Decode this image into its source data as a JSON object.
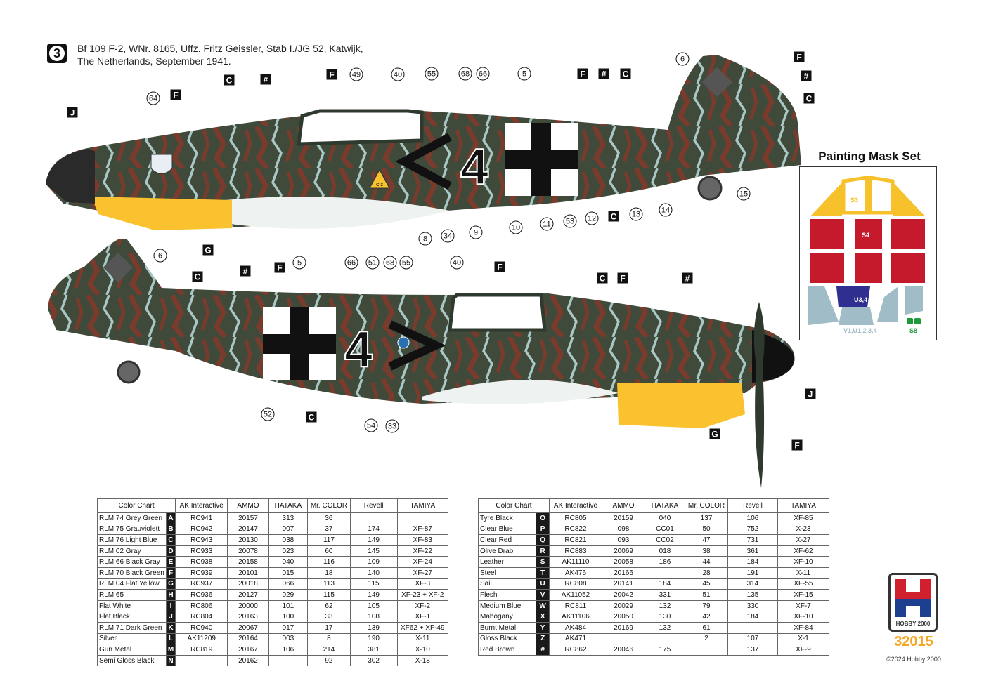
{
  "header": {
    "profile_number": "3",
    "title_line1": "Bf 109 F-2, WNr. 8165, Uffz. Fritz Geissler, Stab I./JG 52, Katwijk,",
    "title_line2": "The Netherlands, September 1941."
  },
  "aircraft_markings": {
    "side_code": "4",
    "tail_swastika_area": "covered",
    "small_label": "C-3"
  },
  "callouts_top": [
    "J",
    "64",
    "F",
    "C",
    "#",
    "F",
    "49",
    "40",
    "55",
    "68",
    "66",
    "5",
    "F",
    "#",
    "C",
    "6",
    "F",
    "#",
    "C",
    "15",
    "14",
    "13",
    "C",
    "12",
    "53",
    "11",
    "10",
    "9",
    "34",
    "8",
    "G"
  ],
  "callouts_bottom": [
    "6",
    "C",
    "#",
    "F",
    "5",
    "66",
    "51",
    "68",
    "55",
    "40",
    "F",
    "C",
    "F",
    "#",
    "J",
    "G",
    "F",
    "52",
    "C",
    "54",
    "33"
  ],
  "mask_set": {
    "title": "Painting Mask Set",
    "labels": [
      "S3",
      "S4",
      "U3,4",
      "V1,U1,2,3,4",
      "S8"
    ],
    "colors": {
      "S3": "#f7c12b",
      "S4": "#c41a2c",
      "U": "#2f2f8f",
      "V": "#9fbcc7",
      "S8": "#1f9a3a"
    }
  },
  "color_chart_headers": [
    "Color Chart",
    "",
    "AK Interactive",
    "AMMO",
    "HATAKA",
    "Mr. COLOR",
    "Revell",
    "TAMIYA"
  ],
  "color_chart_left": [
    [
      "RLM 74 Grey Green",
      "A",
      "RC941",
      "20157",
      "313",
      "36",
      "",
      ""
    ],
    [
      "RLM 75 Grauviolett",
      "B",
      "RC942",
      "20147",
      "007",
      "37",
      "174",
      "XF-87"
    ],
    [
      "RLM 76 Light Blue",
      "C",
      "RC943",
      "20130",
      "038",
      "117",
      "149",
      "XF-83"
    ],
    [
      "RLM 02 Gray",
      "D",
      "RC933",
      "20078",
      "023",
      "60",
      "145",
      "XF-22"
    ],
    [
      "RLM 66 Black Gray",
      "E",
      "RC938",
      "20158",
      "040",
      "116",
      "109",
      "XF-24"
    ],
    [
      "RLM 70 Black Green",
      "F",
      "RC939",
      "20101",
      "015",
      "18",
      "140",
      "XF-27"
    ],
    [
      "RLM 04 Flat Yellow",
      "G",
      "RC937",
      "20018",
      "066",
      "113",
      "115",
      "XF-3"
    ],
    [
      "RLM 65",
      "H",
      "RC936",
      "20127",
      "029",
      "115",
      "149",
      "XF-23 + XF-2"
    ],
    [
      "Flat White",
      "I",
      "RC806",
      "20000",
      "101",
      "62",
      "105",
      "XF-2"
    ],
    [
      "Flat Black",
      "J",
      "RC804",
      "20163",
      "100",
      "33",
      "108",
      "XF-1"
    ],
    [
      "RLM 71 Dark Green",
      "K",
      "RC940",
      "20067",
      "017",
      "17",
      "139",
      "XF62 + XF-49"
    ],
    [
      "Silver",
      "L",
      "AK11209",
      "20164",
      "003",
      "8",
      "190",
      "X-11"
    ],
    [
      "Gun Metal",
      "M",
      "RC819",
      "20167",
      "106",
      "214",
      "381",
      "X-10"
    ],
    [
      "Semi Gloss Black",
      "N",
      "",
      "20162",
      "",
      "92",
      "302",
      "X-18"
    ]
  ],
  "color_chart_right": [
    [
      "Tyre Black",
      "O",
      "RC805",
      "20159",
      "040",
      "137",
      "106",
      "XF-85"
    ],
    [
      "Clear Blue",
      "P",
      "RC822",
      "098",
      "CC01",
      "50",
      "752",
      "X-23"
    ],
    [
      "Clear Red",
      "Q",
      "RC821",
      "093",
      "CC02",
      "47",
      "731",
      "X-27"
    ],
    [
      "Olive Drab",
      "R",
      "RC883",
      "20069",
      "018",
      "38",
      "361",
      "XF-62"
    ],
    [
      "Leather",
      "S",
      "AK11110",
      "20058",
      "186",
      "44",
      "184",
      "XF-10"
    ],
    [
      "Steel",
      "T",
      "AK476",
      "20166",
      "",
      "28",
      "191",
      "X-11"
    ],
    [
      "Sail",
      "U",
      "RC808",
      "20141",
      "184",
      "45",
      "314",
      "XF-55"
    ],
    [
      "Flesh",
      "V",
      "AK11052",
      "20042",
      "331",
      "51",
      "135",
      "XF-15"
    ],
    [
      "Medium Blue",
      "W",
      "RC811",
      "20029",
      "132",
      "79",
      "330",
      "XF-7"
    ],
    [
      "Mahogany",
      "X",
      "AK11106",
      "20050",
      "130",
      "42",
      "184",
      "XF-10"
    ],
    [
      "Burnt Metal",
      "Y",
      "AK484",
      "20169",
      "132",
      "61",
      "",
      "XF-84"
    ],
    [
      "Gloss Black",
      "Z",
      "AK471",
      "",
      "",
      "2",
      "107",
      "X-1"
    ],
    [
      "Red Brown",
      "#",
      "RC862",
      "20046",
      "175",
      "",
      "137",
      "XF-9"
    ]
  ],
  "brand": {
    "logo_text": "HOBBY 2000",
    "kit_number": "32015",
    "copyright": "©2024 Hobby 2000",
    "colors": {
      "red": "#d0202e",
      "blue": "#1d3f8f",
      "accent": "#f5a623"
    }
  },
  "camo_colors": {
    "green": "#3f4a3b",
    "brown": "#7a3b2c",
    "light_blue": "#a9c7c4",
    "yellow": "#f9c22e"
  }
}
